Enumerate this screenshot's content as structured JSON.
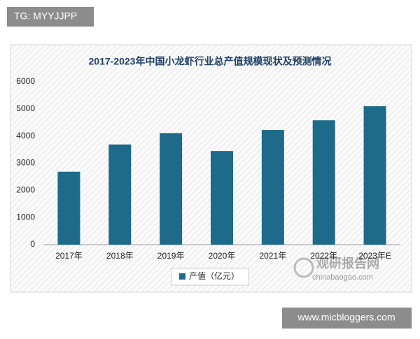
{
  "tag_label": "TG: MYYJJPP",
  "site_label": "www.micbloggers.com",
  "watermark": {
    "name": "观研报告网",
    "url": "chinabaogao.com"
  },
  "chart_data": {
    "type": "bar",
    "title": "2017-2023年中国小龙虾行业总产值规模现状及预测情况",
    "categories": [
      "2017年",
      "2018年",
      "2019年",
      "2020年",
      "2021年",
      "2022年",
      "2023年E"
    ],
    "series": [
      {
        "name": "产值（亿元）",
        "color": "#1e6a8a",
        "values": [
          2685,
          3690,
          4110,
          3448,
          4222,
          4580,
          5100
        ]
      }
    ],
    "ylim": [
      0,
      6000
    ],
    "yticks": [
      0,
      1000,
      2000,
      3000,
      4000,
      5000,
      6000
    ],
    "legend": "bottom"
  }
}
